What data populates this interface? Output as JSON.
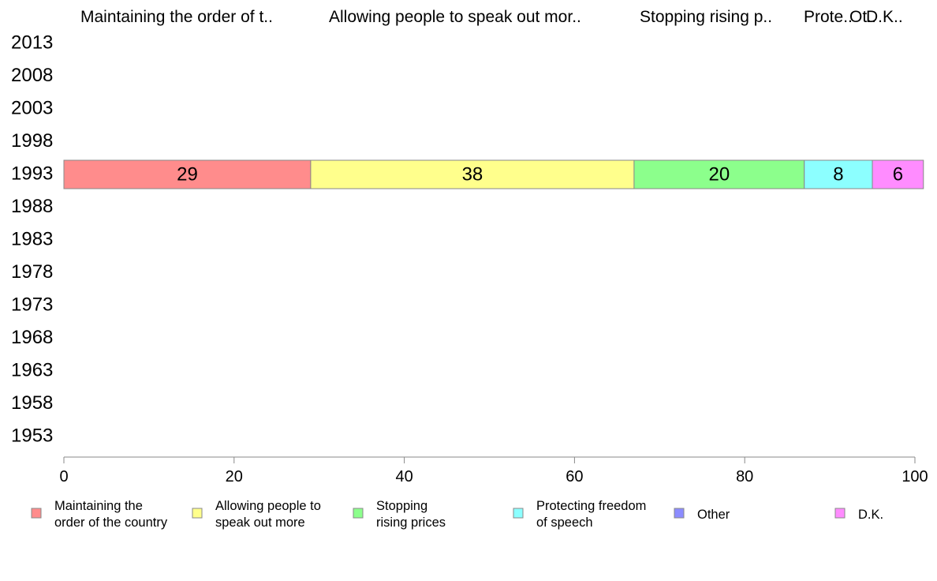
{
  "chart_data": {
    "type": "bar",
    "orientation": "horizontal",
    "stacked": true,
    "categories": [
      "2013",
      "2008",
      "2003",
      "1998",
      "1993",
      "1988",
      "1983",
      "1978",
      "1973",
      "1968",
      "1963",
      "1958",
      "1953"
    ],
    "series": [
      {
        "name": "Maintaining the order of the country",
        "legend_lines": [
          "Maintaining the",
          "order of the country"
        ],
        "header": "Maintaining the order of t..",
        "color": "#ff8c8c",
        "values": [
          null,
          null,
          null,
          null,
          29,
          null,
          null,
          null,
          null,
          null,
          null,
          null,
          null
        ]
      },
      {
        "name": "Allowing people to speak out more",
        "legend_lines": [
          "Allowing people to",
          "speak out more"
        ],
        "header": "Allowing people to speak out mor..",
        "color": "#ffff8c",
        "values": [
          null,
          null,
          null,
          null,
          38,
          null,
          null,
          null,
          null,
          null,
          null,
          null,
          null
        ]
      },
      {
        "name": "Stopping rising prices",
        "legend_lines": [
          "Stopping",
          "rising prices"
        ],
        "header": "Stopping rising p..",
        "color": "#8cff8c",
        "values": [
          null,
          null,
          null,
          null,
          20,
          null,
          null,
          null,
          null,
          null,
          null,
          null,
          null
        ]
      },
      {
        "name": "Protecting freedom of speech",
        "legend_lines": [
          "Protecting freedom",
          "of speech"
        ],
        "header": "Prote..",
        "color": "#8cffff",
        "values": [
          null,
          null,
          null,
          null,
          8,
          null,
          null,
          null,
          null,
          null,
          null,
          null,
          null
        ]
      },
      {
        "name": "Other",
        "legend_lines": [
          "Other"
        ],
        "header": "Ot..",
        "color": "#8c8cff",
        "values": [
          null,
          null,
          null,
          null,
          0,
          null,
          null,
          null,
          null,
          null,
          null,
          null,
          null
        ]
      },
      {
        "name": "D.K.",
        "legend_lines": [
          "D.K."
        ],
        "header": "D.K..",
        "color": "#ff8cff",
        "values": [
          null,
          null,
          null,
          null,
          6,
          null,
          null,
          null,
          null,
          null,
          null,
          null,
          null
        ]
      }
    ],
    "xlim": [
      0,
      100
    ],
    "xticks": [
      0,
      20,
      40,
      60,
      80,
      100
    ],
    "grid": false,
    "legend_position": "bottom"
  }
}
